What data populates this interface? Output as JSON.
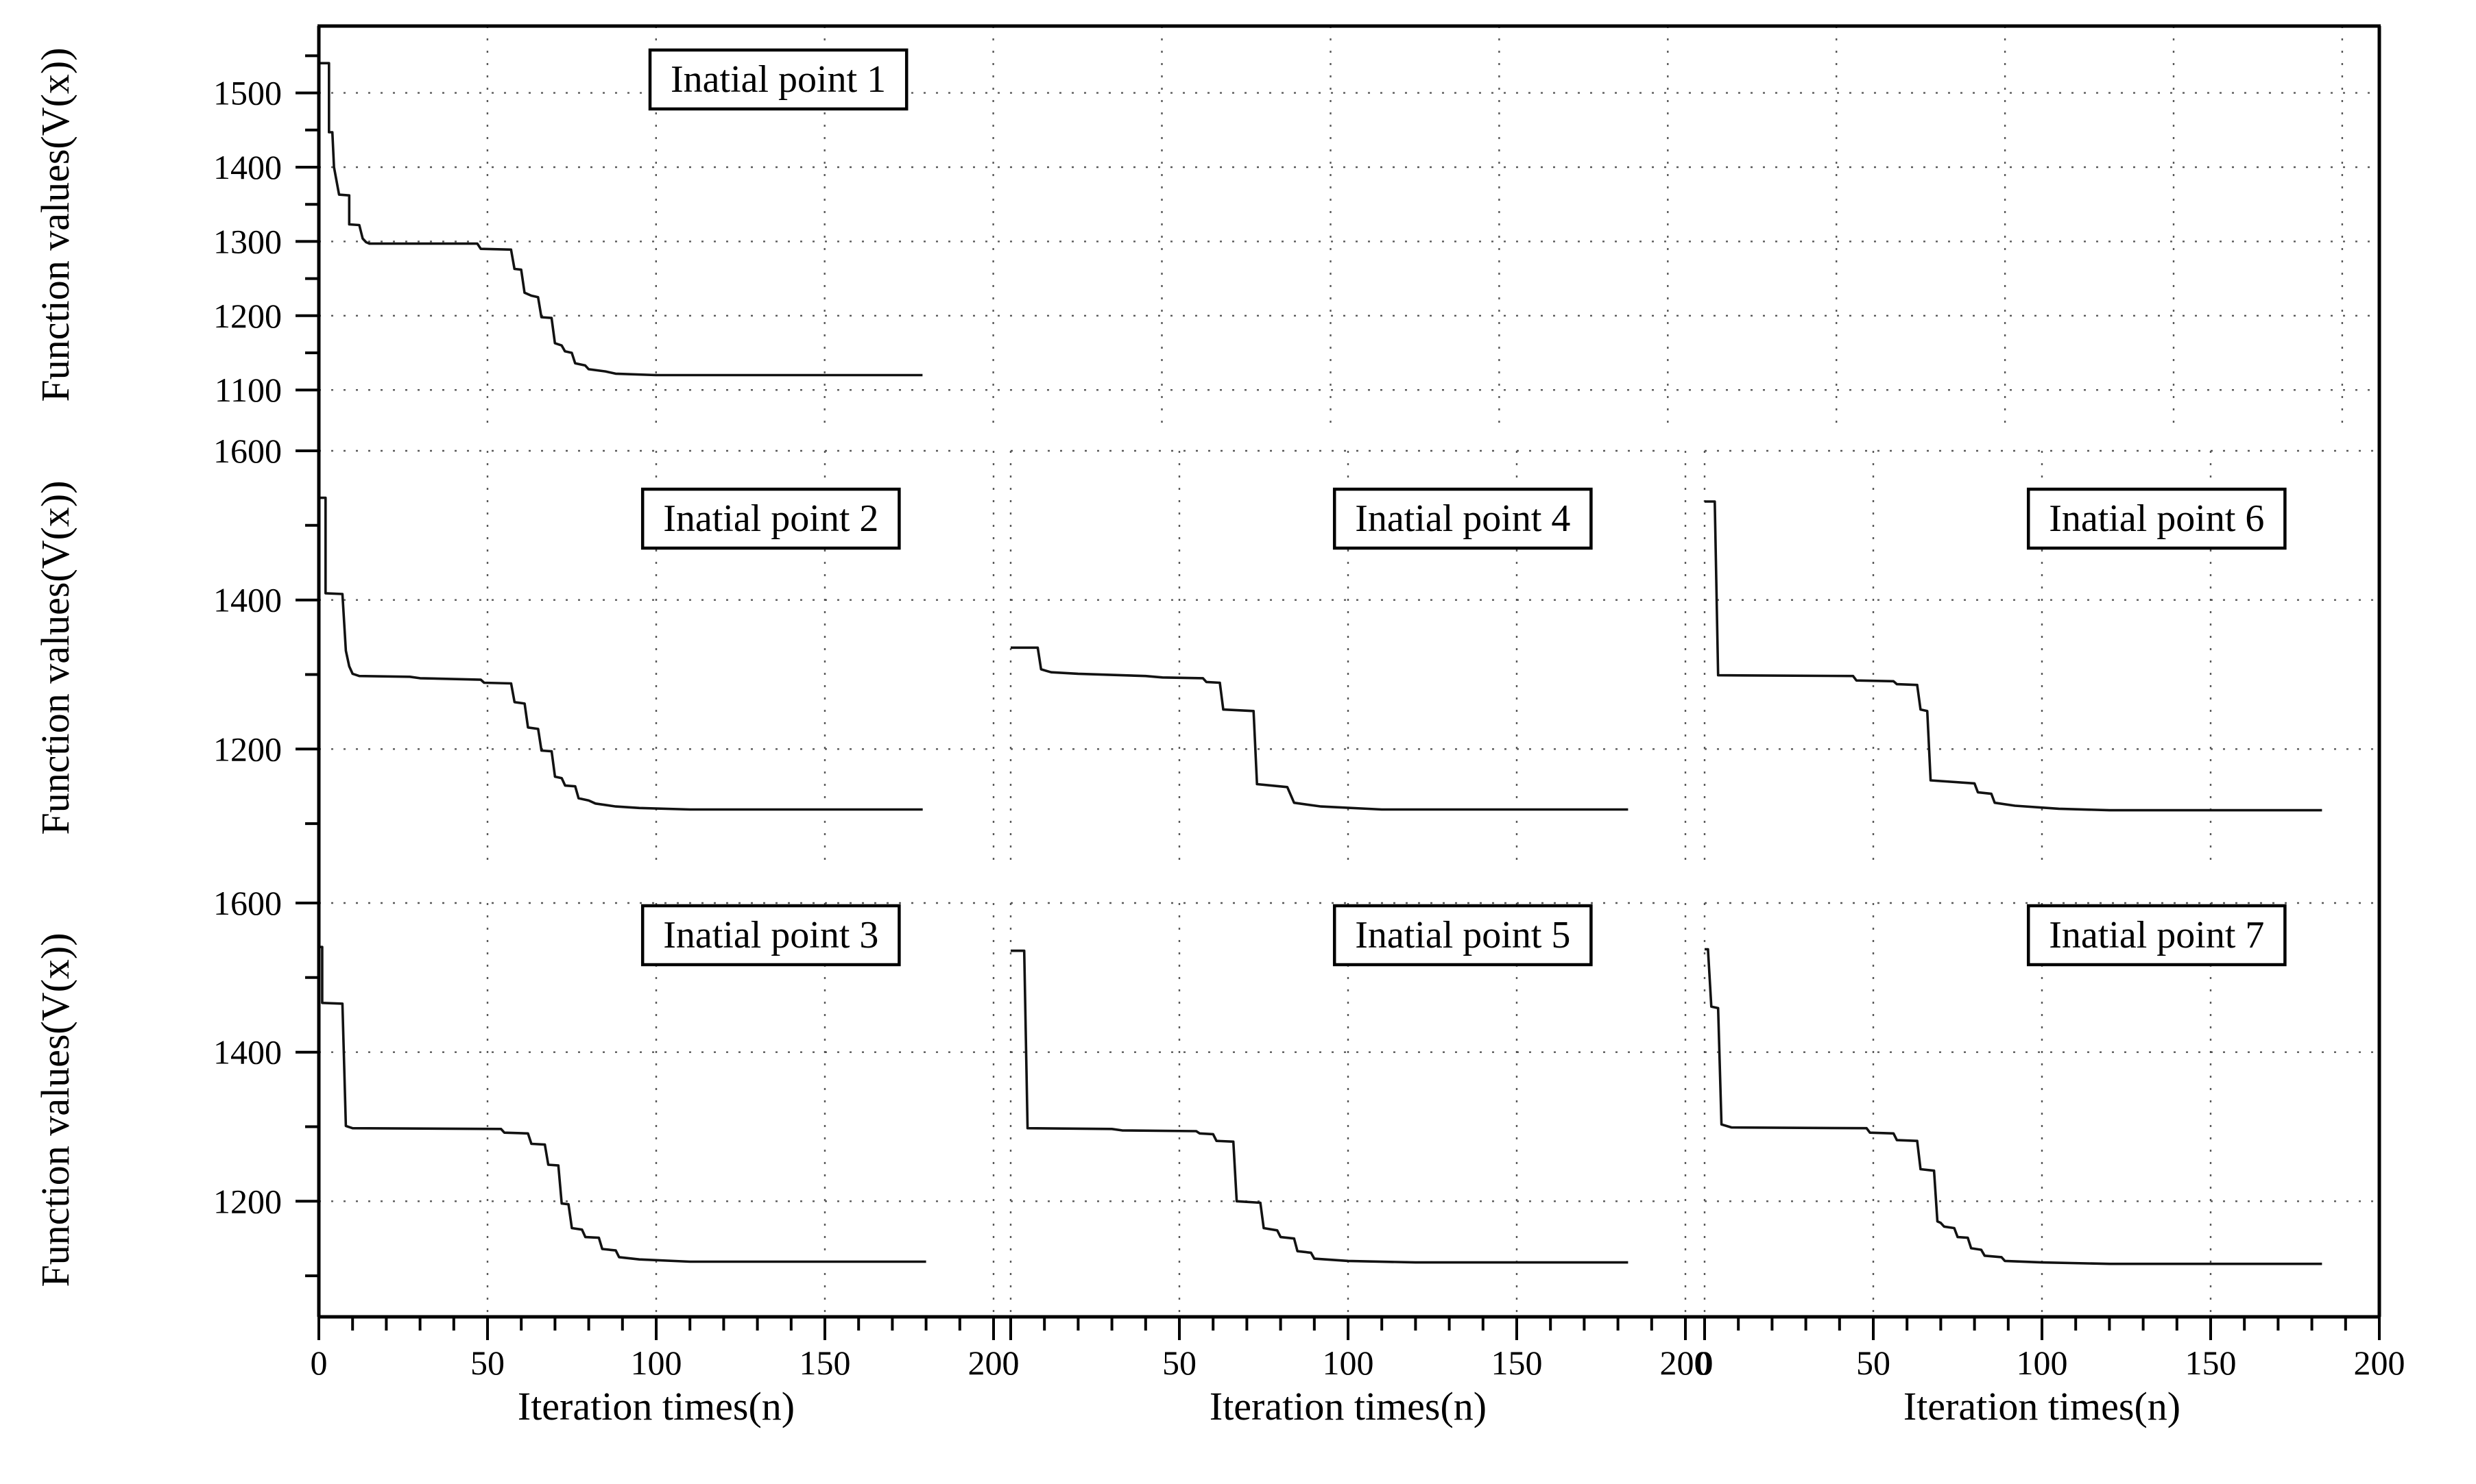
{
  "figure": {
    "background": "#ffffff",
    "axis_color": "#000000",
    "grid_color": "#3c3c3c",
    "line_color": "#121212",
    "y_axis_title": "Function values(V(x))",
    "x_axis_title": "Iteration times(n)"
  },
  "chart_data": [
    {
      "type": "line",
      "title": "Inatial point 1",
      "row": 1,
      "col": 1,
      "colspan": 3,
      "xlim": [
        0,
        611
      ],
      "ylim": [
        1055,
        1590
      ],
      "xtick_major_step": 50,
      "xtick_minor_step": 10,
      "yticks_major": [
        1100,
        1200,
        1300,
        1400,
        1500
      ],
      "yticks_minor": [
        1150,
        1250,
        1350,
        1450,
        1550
      ],
      "ytick_labels": [
        "1100",
        "1200",
        "1300",
        "1400",
        "1500"
      ],
      "grid": true,
      "legend": false,
      "points": [
        [
          0,
          1540
        ],
        [
          3,
          1540
        ],
        [
          3,
          1447
        ],
        [
          4,
          1447
        ],
        [
          4.5,
          1400
        ],
        [
          6,
          1363
        ],
        [
          9,
          1362
        ],
        [
          9,
          1323
        ],
        [
          12,
          1322
        ],
        [
          13,
          1304
        ],
        [
          14,
          1299
        ],
        [
          15,
          1297
        ],
        [
          47,
          1297
        ],
        [
          48,
          1290
        ],
        [
          57,
          1289
        ],
        [
          58,
          1263
        ],
        [
          60,
          1262
        ],
        [
          61,
          1231
        ],
        [
          63,
          1227
        ],
        [
          65,
          1225
        ],
        [
          66,
          1198
        ],
        [
          69,
          1197
        ],
        [
          70,
          1163
        ],
        [
          72,
          1160
        ],
        [
          73,
          1152
        ],
        [
          75,
          1150
        ],
        [
          76,
          1136
        ],
        [
          79,
          1133
        ],
        [
          80,
          1128
        ],
        [
          85,
          1125
        ],
        [
          88,
          1122
        ],
        [
          100,
          1120
        ],
        [
          179,
          1120
        ]
      ]
    },
    {
      "type": "line",
      "title": "Inatial point 2",
      "row": 2,
      "col": 1,
      "xlim": [
        0,
        200
      ],
      "ylim": [
        1045,
        1600
      ],
      "xtick_major_step": 50,
      "xtick_minor_step": 10,
      "yticks_major": [
        1200,
        1400,
        1600
      ],
      "yticks_minor": [
        1100,
        1300,
        1500
      ],
      "ytick_labels": [
        "1200",
        "1400",
        "1600"
      ],
      "grid": true,
      "legend": false,
      "points": [
        [
          0,
          1537
        ],
        [
          2,
          1537
        ],
        [
          2,
          1409
        ],
        [
          7,
          1408
        ],
        [
          8,
          1332
        ],
        [
          9,
          1311
        ],
        [
          10,
          1301
        ],
        [
          12,
          1298
        ],
        [
          27,
          1297
        ],
        [
          30,
          1295
        ],
        [
          48,
          1293
        ],
        [
          49,
          1289
        ],
        [
          57,
          1288
        ],
        [
          58,
          1263
        ],
        [
          61,
          1261
        ],
        [
          62,
          1229
        ],
        [
          65,
          1227
        ],
        [
          66,
          1198
        ],
        [
          69,
          1197
        ],
        [
          70,
          1163
        ],
        [
          72,
          1161
        ],
        [
          73,
          1151
        ],
        [
          76,
          1150
        ],
        [
          77,
          1134
        ],
        [
          80,
          1131
        ],
        [
          82,
          1127
        ],
        [
          88,
          1123
        ],
        [
          95,
          1121
        ],
        [
          110,
          1119
        ],
        [
          179,
          1119
        ]
      ]
    },
    {
      "type": "line",
      "title": "Inatial point 3",
      "row": 3,
      "col": 1,
      "xlim": [
        0,
        200
      ],
      "ylim": [
        1045,
        1600
      ],
      "xtick_major_step": 50,
      "xtick_minor_step": 10,
      "xticks_major": [
        0,
        50,
        100,
        150,
        200
      ],
      "xtick_labels": [
        "0",
        "50",
        "100",
        "150",
        "200"
      ],
      "yticks_major": [
        1200,
        1400,
        1600
      ],
      "yticks_minor": [
        1100,
        1300,
        1500
      ],
      "ytick_labels": [
        "1200",
        "1400",
        "1600"
      ],
      "grid": true,
      "legend": false,
      "points": [
        [
          0,
          1541
        ],
        [
          1,
          1541
        ],
        [
          1,
          1466
        ],
        [
          7,
          1465
        ],
        [
          8,
          1301
        ],
        [
          10,
          1298
        ],
        [
          54,
          1297
        ],
        [
          55,
          1292
        ],
        [
          62,
          1291
        ],
        [
          63,
          1277
        ],
        [
          67,
          1276
        ],
        [
          68,
          1249
        ],
        [
          71,
          1248
        ],
        [
          72,
          1197
        ],
        [
          74,
          1196
        ],
        [
          75,
          1164
        ],
        [
          78,
          1162
        ],
        [
          79,
          1152
        ],
        [
          83,
          1151
        ],
        [
          84,
          1136
        ],
        [
          88,
          1134
        ],
        [
          89,
          1125
        ],
        [
          95,
          1122
        ],
        [
          110,
          1119
        ],
        [
          180,
          1119
        ]
      ]
    },
    {
      "type": "line",
      "title": "Inatial point 4",
      "row": 2,
      "col": 2,
      "xlim": [
        0,
        200
      ],
      "ylim": [
        1045,
        1600
      ],
      "xtick_major_step": 50,
      "xtick_minor_step": 10,
      "yticks_major": [
        1200,
        1400,
        1600
      ],
      "yticks_minor": [
        1100,
        1300,
        1500
      ],
      "grid": true,
      "legend": false,
      "points": [
        [
          0,
          1336
        ],
        [
          8,
          1336
        ],
        [
          9,
          1307
        ],
        [
          12,
          1303
        ],
        [
          20,
          1301
        ],
        [
          40,
          1298
        ],
        [
          45,
          1296
        ],
        [
          57,
          1295
        ],
        [
          58,
          1290
        ],
        [
          62,
          1289
        ],
        [
          63,
          1253
        ],
        [
          72,
          1251
        ],
        [
          73,
          1153
        ],
        [
          82,
          1149
        ],
        [
          84,
          1128
        ],
        [
          92,
          1123
        ],
        [
          110,
          1119
        ],
        [
          183,
          1119
        ]
      ]
    },
    {
      "type": "line",
      "title": "Inatial point 5",
      "row": 3,
      "col": 2,
      "xlim": [
        0,
        200
      ],
      "ylim": [
        1045,
        1600
      ],
      "xtick_major_step": 50,
      "xtick_minor_step": 10,
      "xticks_major": [
        0,
        50,
        100,
        150,
        200
      ],
      "xtick_labels": [
        "0",
        "50",
        "100",
        "150",
        "200"
      ],
      "yticks_major": [
        1200,
        1400,
        1600
      ],
      "yticks_minor": [
        1100,
        1300,
        1500
      ],
      "grid": true,
      "legend": false,
      "points": [
        [
          0,
          1536
        ],
        [
          4,
          1536
        ],
        [
          5,
          1298
        ],
        [
          30,
          1297
        ],
        [
          33,
          1295
        ],
        [
          55,
          1294
        ],
        [
          56,
          1291
        ],
        [
          60,
          1290
        ],
        [
          61,
          1281
        ],
        [
          66,
          1280
        ],
        [
          67,
          1200
        ],
        [
          74,
          1198
        ],
        [
          75,
          1164
        ],
        [
          79,
          1161
        ],
        [
          80,
          1152
        ],
        [
          84,
          1150
        ],
        [
          85,
          1133
        ],
        [
          89,
          1131
        ],
        [
          90,
          1123
        ],
        [
          100,
          1120
        ],
        [
          120,
          1118
        ],
        [
          183,
          1118
        ]
      ]
    },
    {
      "type": "line",
      "title": "Inatial point 6",
      "row": 2,
      "col": 3,
      "xlim": [
        0,
        200
      ],
      "ylim": [
        1045,
        1600
      ],
      "xtick_major_step": 50,
      "xtick_minor_step": 10,
      "yticks_major": [
        1200,
        1400,
        1600
      ],
      "yticks_minor": [
        1100,
        1300,
        1500
      ],
      "grid": true,
      "legend": false,
      "points": [
        [
          0,
          1532
        ],
        [
          3,
          1532
        ],
        [
          4,
          1299
        ],
        [
          44,
          1298
        ],
        [
          45,
          1292
        ],
        [
          56,
          1291
        ],
        [
          57,
          1287
        ],
        [
          63,
          1286
        ],
        [
          64,
          1253
        ],
        [
          66,
          1251
        ],
        [
          67,
          1158
        ],
        [
          80,
          1154
        ],
        [
          81,
          1142
        ],
        [
          85,
          1140
        ],
        [
          86,
          1128
        ],
        [
          92,
          1124
        ],
        [
          105,
          1120
        ],
        [
          120,
          1118
        ],
        [
          183,
          1118
        ]
      ]
    },
    {
      "type": "line",
      "title": "Inatial point 7",
      "row": 3,
      "col": 3,
      "xlim": [
        0,
        200
      ],
      "ylim": [
        1045,
        1600
      ],
      "xtick_major_step": 50,
      "xtick_minor_step": 10,
      "xticks_major": [
        0,
        50,
        100,
        150,
        200
      ],
      "xtick_labels": [
        "0",
        "50",
        "100",
        "150",
        "200"
      ],
      "yticks_major": [
        1200,
        1400,
        1600
      ],
      "yticks_minor": [
        1100,
        1300,
        1500
      ],
      "grid": true,
      "legend": false,
      "points": [
        [
          0,
          1538
        ],
        [
          1,
          1538
        ],
        [
          2,
          1461
        ],
        [
          4,
          1459
        ],
        [
          5,
          1303
        ],
        [
          8,
          1299
        ],
        [
          48,
          1298
        ],
        [
          49,
          1292
        ],
        [
          56,
          1291
        ],
        [
          57,
          1282
        ],
        [
          63,
          1281
        ],
        [
          64,
          1243
        ],
        [
          68,
          1241
        ],
        [
          69,
          1173
        ],
        [
          70,
          1171
        ],
        [
          71,
          1166
        ],
        [
          74,
          1164
        ],
        [
          75,
          1152
        ],
        [
          78,
          1151
        ],
        [
          79,
          1137
        ],
        [
          82,
          1135
        ],
        [
          83,
          1127
        ],
        [
          88,
          1125
        ],
        [
          89,
          1120
        ],
        [
          100,
          1118
        ],
        [
          120,
          1116
        ],
        [
          183,
          1116
        ]
      ]
    }
  ]
}
